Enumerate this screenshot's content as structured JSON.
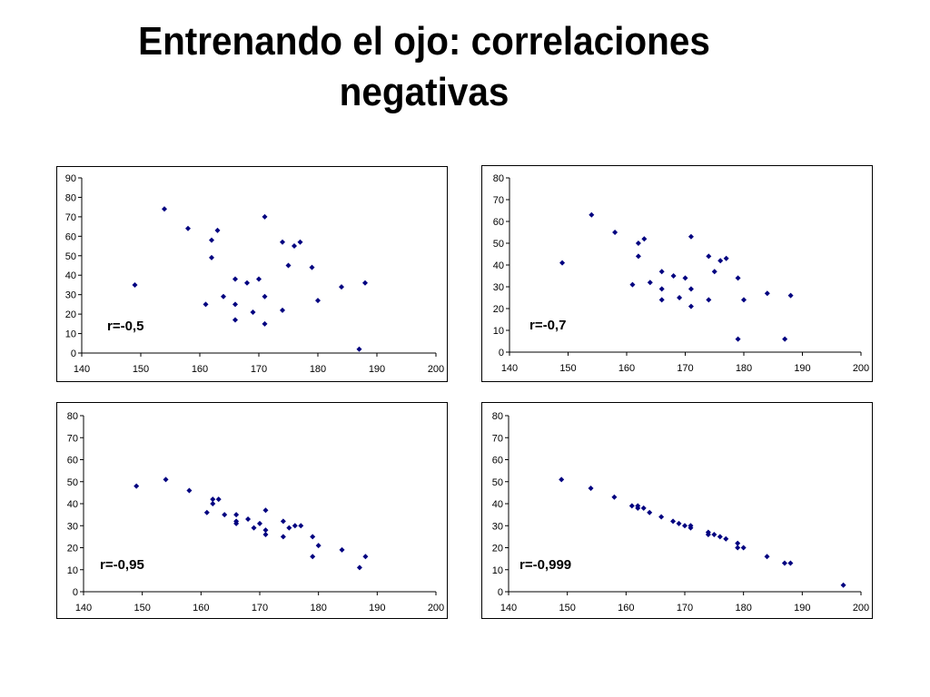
{
  "slide": {
    "title_line1": "Entrenando el ojo: correlaciones",
    "title_line2": "negativas"
  },
  "chart_data": [
    {
      "type": "scatter",
      "annotation": "r=-0,5",
      "xlim": [
        140,
        200
      ],
      "ylim": [
        0,
        90
      ],
      "xticks": [
        140,
        150,
        160,
        170,
        180,
        190,
        200
      ],
      "yticks": [
        0,
        10,
        20,
        30,
        40,
        50,
        60,
        70,
        80,
        90
      ],
      "marker_color": "#000080",
      "points": [
        [
          149,
          35
        ],
        [
          154,
          74
        ],
        [
          158,
          64
        ],
        [
          162,
          58
        ],
        [
          162,
          49
        ],
        [
          163,
          63
        ],
        [
          161,
          25
        ],
        [
          164,
          29
        ],
        [
          166,
          38
        ],
        [
          166,
          25
        ],
        [
          166,
          17
        ],
        [
          168,
          36
        ],
        [
          169,
          21
        ],
        [
          170,
          38
        ],
        [
          171,
          70
        ],
        [
          171,
          29
        ],
        [
          171,
          15
        ],
        [
          174,
          57
        ],
        [
          174,
          22
        ],
        [
          175,
          45
        ],
        [
          176,
          55
        ],
        [
          177,
          57
        ],
        [
          179,
          44
        ],
        [
          180,
          27
        ],
        [
          184,
          34
        ],
        [
          187,
          2
        ],
        [
          188,
          36
        ]
      ]
    },
    {
      "type": "scatter",
      "annotation": "r=-0,7",
      "xlim": [
        140,
        200
      ],
      "ylim": [
        0,
        80
      ],
      "xticks": [
        140,
        150,
        160,
        170,
        180,
        190,
        200
      ],
      "yticks": [
        0,
        10,
        20,
        30,
        40,
        50,
        60,
        70,
        80
      ],
      "marker_color": "#000080",
      "points": [
        [
          149,
          41
        ],
        [
          154,
          63
        ],
        [
          158,
          55
        ],
        [
          161,
          31
        ],
        [
          162,
          50
        ],
        [
          162,
          44
        ],
        [
          163,
          52
        ],
        [
          164,
          32
        ],
        [
          166,
          37
        ],
        [
          166,
          29
        ],
        [
          166,
          24
        ],
        [
          168,
          35
        ],
        [
          169,
          25
        ],
        [
          170,
          34
        ],
        [
          171,
          53
        ],
        [
          171,
          29
        ],
        [
          171,
          21
        ],
        [
          174,
          44
        ],
        [
          174,
          24
        ],
        [
          175,
          37
        ],
        [
          176,
          42
        ],
        [
          177,
          43
        ],
        [
          179,
          34
        ],
        [
          179,
          6
        ],
        [
          180,
          24
        ],
        [
          184,
          27
        ],
        [
          187,
          6
        ],
        [
          188,
          26
        ]
      ]
    },
    {
      "type": "scatter",
      "annotation": "r=-0,95",
      "xlim": [
        140,
        200
      ],
      "ylim": [
        0,
        80
      ],
      "xticks": [
        140,
        150,
        160,
        170,
        180,
        190,
        200
      ],
      "yticks": [
        0,
        10,
        20,
        30,
        40,
        50,
        60,
        70,
        80
      ],
      "marker_color": "#000080",
      "points": [
        [
          149,
          48
        ],
        [
          154,
          51
        ],
        [
          158,
          46
        ],
        [
          161,
          36
        ],
        [
          162,
          42
        ],
        [
          162,
          40
        ],
        [
          163,
          42
        ],
        [
          164,
          35
        ],
        [
          166,
          35
        ],
        [
          166,
          32
        ],
        [
          166,
          31
        ],
        [
          168,
          33
        ],
        [
          169,
          29
        ],
        [
          170,
          31
        ],
        [
          171,
          37
        ],
        [
          171,
          28
        ],
        [
          171,
          26
        ],
        [
          174,
          32
        ],
        [
          174,
          25
        ],
        [
          175,
          29
        ],
        [
          176,
          30
        ],
        [
          177,
          30
        ],
        [
          179,
          25
        ],
        [
          179,
          16
        ],
        [
          180,
          21
        ],
        [
          184,
          19
        ],
        [
          187,
          11
        ],
        [
          188,
          16
        ]
      ]
    },
    {
      "type": "scatter",
      "annotation": "r=-0,999",
      "xlim": [
        140,
        200
      ],
      "ylim": [
        0,
        80
      ],
      "xticks": [
        140,
        150,
        160,
        170,
        180,
        190,
        200
      ],
      "yticks": [
        0,
        10,
        20,
        30,
        40,
        50,
        60,
        70,
        80
      ],
      "marker_color": "#000080",
      "points": [
        [
          149,
          51
        ],
        [
          154,
          47
        ],
        [
          158,
          43
        ],
        [
          161,
          39
        ],
        [
          162,
          39
        ],
        [
          162,
          38
        ],
        [
          163,
          38
        ],
        [
          164,
          36
        ],
        [
          166,
          34
        ],
        [
          168,
          32
        ],
        [
          169,
          31
        ],
        [
          170,
          30
        ],
        [
          171,
          30
        ],
        [
          171,
          29
        ],
        [
          174,
          27
        ],
        [
          174,
          26
        ],
        [
          175,
          26
        ],
        [
          176,
          25
        ],
        [
          177,
          24
        ],
        [
          179,
          22
        ],
        [
          179,
          20
        ],
        [
          180,
          20
        ],
        [
          184,
          16
        ],
        [
          187,
          13
        ],
        [
          188,
          13
        ],
        [
          197,
          3
        ]
      ]
    }
  ]
}
